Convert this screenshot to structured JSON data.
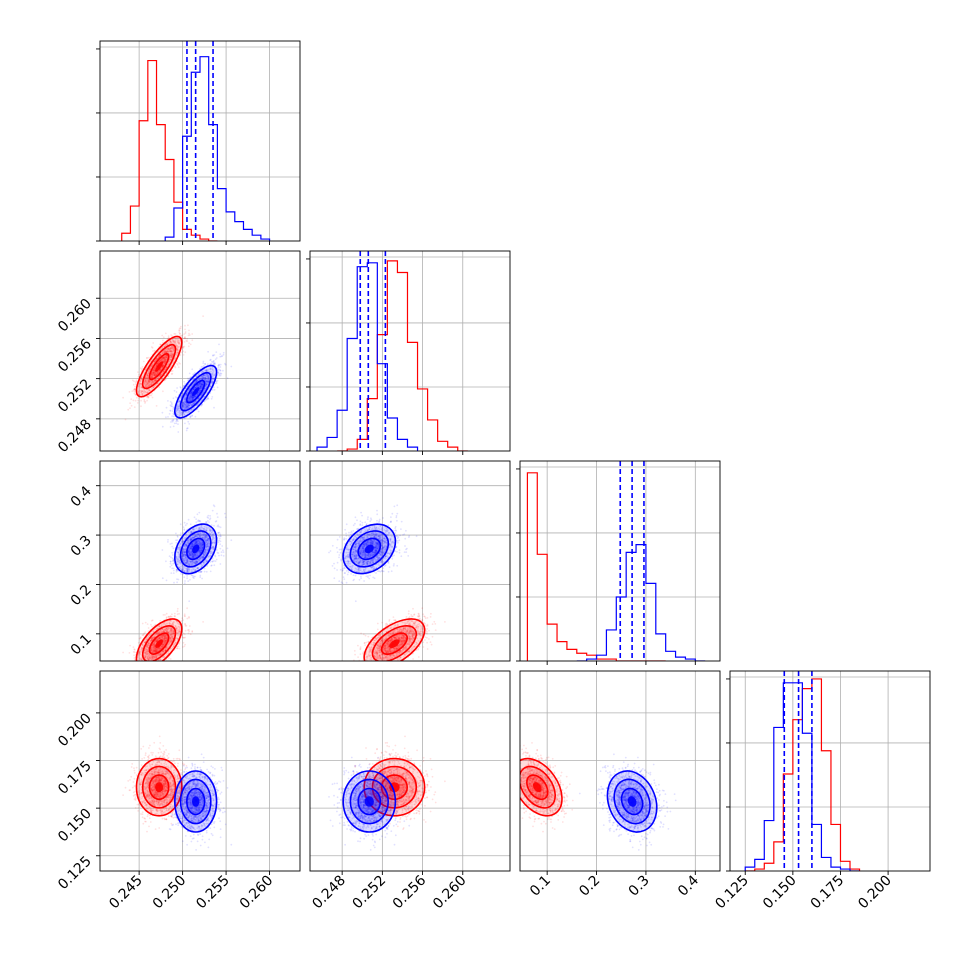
{
  "chart_data": {
    "type": "scatter",
    "subtype": "corner-plot",
    "grid": true,
    "colors": {
      "a": "#ff0000",
      "b": "#0000ff",
      "grid": "#b0b0b0",
      "frame": "#000000"
    },
    "params": [
      {
        "range": [
          0.2405,
          0.2635
        ],
        "ticks": [
          0.245,
          0.25,
          0.255,
          0.26
        ],
        "tick_labels": [
          "0.245",
          "0.250",
          "0.255",
          "0.260"
        ]
      },
      {
        "range": [
          0.2448,
          0.2647
        ],
        "ticks": [
          0.248,
          0.252,
          0.256,
          0.26
        ],
        "tick_labels": [
          "0.248",
          "0.252",
          "0.256",
          "0.260"
        ]
      },
      {
        "range": [
          0.045,
          0.45
        ],
        "ticks": [
          0.1,
          0.2,
          0.3,
          0.4
        ],
        "tick_labels": [
          "0.1",
          "0.2",
          "0.3",
          "0.4"
        ]
      },
      {
        "range": [
          0.117,
          0.222
        ],
        "ticks": [
          0.125,
          0.15,
          0.175,
          0.2
        ],
        "tick_labels": [
          "0.125",
          "0.150",
          "0.175",
          "0.200"
        ]
      }
    ],
    "series": [
      {
        "color": "#ff0000",
        "mean": [
          0.2473,
          0.2532,
          0.08,
          0.161
        ],
        "std": [
          0.0013,
          0.0015,
          0.025,
          0.0075
        ],
        "corr": [
          [
            1,
            0.8,
            0.6,
            0
          ],
          [
            0.8,
            1,
            0.55,
            0
          ],
          [
            0.6,
            0.55,
            1,
            -0.4
          ],
          [
            0,
            0,
            -0.4,
            1
          ]
        ],
        "quantiles": [],
        "hist": [
          {
            "edges": [
              0.243,
              0.244,
              0.245,
              0.246,
              0.247,
              0.248,
              0.249,
              0.25,
              0.251,
              0.252,
              0.253,
              0.254
            ],
            "counts": [
              0.04,
              0.18,
              0.62,
              0.93,
              0.6,
              0.42,
              0.2,
              0.06,
              0.03,
              0.01,
              0.0
            ]
          },
          {
            "edges": [
              0.2475,
              0.2485,
              0.2495,
              0.2505,
              0.2515,
              0.2525,
              0.2535,
              0.2545,
              0.2555,
              0.2565,
              0.2575,
              0.2585,
              0.2595,
              0.2605
            ],
            "counts": [
              0.0,
              0.01,
              0.06,
              0.27,
              0.6,
              0.98,
              0.92,
              0.56,
              0.32,
              0.16,
              0.05,
              0.02,
              0.0
            ]
          },
          {
            "edges": [
              0.06,
              0.08,
              0.1,
              0.12,
              0.14,
              0.16,
              0.18,
              0.2,
              0.22,
              0.24,
              0.26,
              0.28,
              0.3,
              0.32,
              0.34
            ],
            "counts": [
              0.97,
              0.55,
              0.19,
              0.1,
              0.06,
              0.04,
              0.03,
              0.01,
              0.01,
              0.0,
              0.0,
              0.0,
              0.0,
              0.0
            ]
          },
          {
            "edges": [
              0.125,
              0.13,
              0.135,
              0.14,
              0.145,
              0.15,
              0.155,
              0.16,
              0.165,
              0.17,
              0.175,
              0.18,
              0.185
            ],
            "counts": [
              0.0,
              0.01,
              0.04,
              0.15,
              0.5,
              0.78,
              0.94,
              0.99,
              0.62,
              0.24,
              0.05,
              0.01
            ]
          }
        ]
      },
      {
        "color": "#0000ff",
        "mean": [
          0.2515,
          0.2507,
          0.272,
          0.1535
        ],
        "std": [
          0.0012,
          0.0013,
          0.025,
          0.008
        ],
        "corr": [
          [
            1,
            0.75,
            0.35,
            0
          ],
          [
            0.75,
            1,
            0.3,
            0
          ],
          [
            0.35,
            0.3,
            1,
            -0.2
          ],
          [
            0,
            0,
            -0.2,
            1
          ]
        ],
        "quantiles": [
          [
            0.2505,
            0.2515,
            0.2535
          ],
          [
            0.2498,
            0.2506,
            0.2523
          ],
          [
            0.248,
            0.272,
            0.296
          ],
          [
            0.1455,
            0.153,
            0.16
          ]
        ],
        "hist": [
          {
            "edges": [
              0.248,
              0.249,
              0.25,
              0.251,
              0.252,
              0.253,
              0.254,
              0.255,
              0.256,
              0.257,
              0.258,
              0.259,
              0.26
            ],
            "counts": [
              0.02,
              0.17,
              0.54,
              0.87,
              0.95,
              0.6,
              0.27,
              0.15,
              0.1,
              0.06,
              0.03,
              0.01
            ]
          },
          {
            "edges": [
              0.2455,
              0.2465,
              0.2475,
              0.2485,
              0.2495,
              0.2505,
              0.2515,
              0.2525,
              0.2535,
              0.2545,
              0.2555
            ],
            "counts": [
              0.02,
              0.07,
              0.21,
              0.58,
              0.95,
              0.97,
              0.45,
              0.17,
              0.06,
              0.02
            ]
          },
          {
            "edges": [
              0.16,
              0.18,
              0.2,
              0.22,
              0.24,
              0.26,
              0.28,
              0.3,
              0.32,
              0.34,
              0.36,
              0.38,
              0.4,
              0.42
            ],
            "counts": [
              0.0,
              0.01,
              0.03,
              0.16,
              0.33,
              0.56,
              0.6,
              0.4,
              0.14,
              0.05,
              0.02,
              0.01,
              0.0
            ]
          },
          {
            "edges": [
              0.125,
              0.13,
              0.135,
              0.14,
              0.145,
              0.15,
              0.155,
              0.16,
              0.165,
              0.17,
              0.175,
              0.18,
              0.185
            ],
            "counts": [
              0.02,
              0.06,
              0.26,
              0.74,
              0.97,
              0.97,
              0.71,
              0.24,
              0.07,
              0.02,
              0.01,
              0.0
            ]
          }
        ]
      }
    ]
  }
}
